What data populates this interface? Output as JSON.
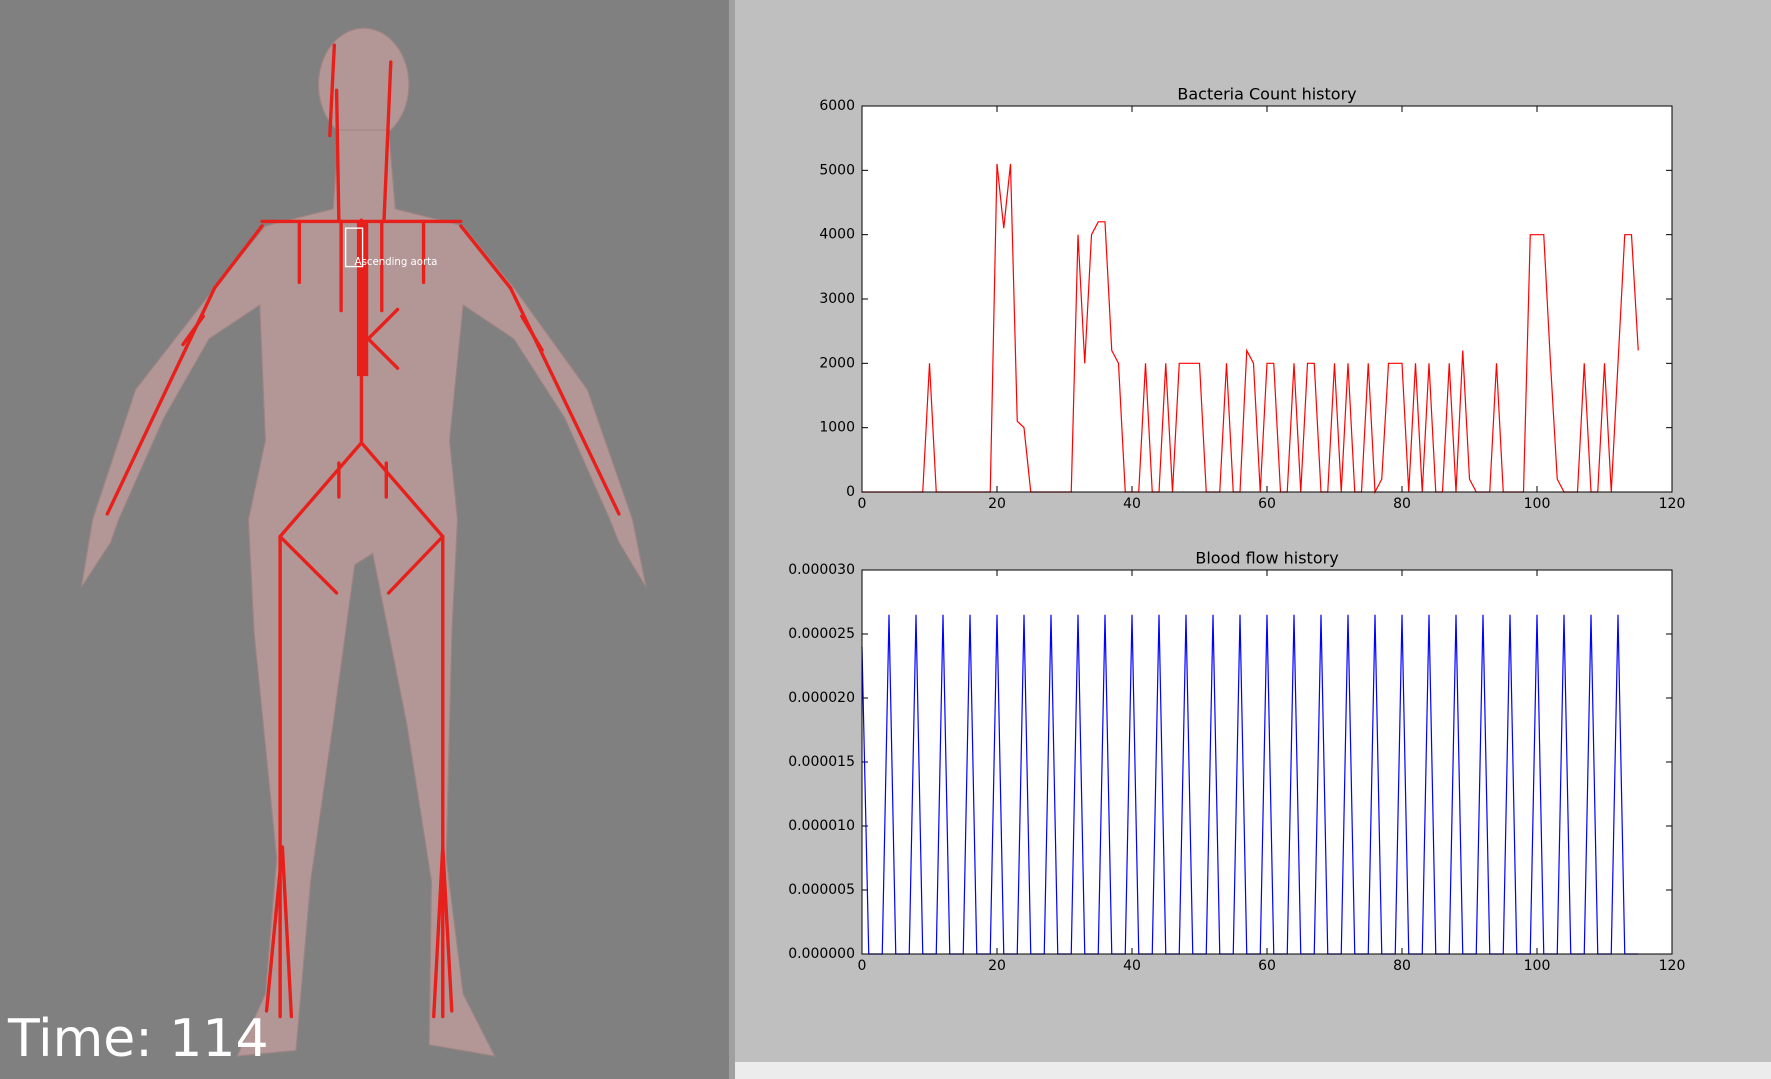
{
  "viewer": {
    "time_label": "Time: 114",
    "vessel_label": "Ascending aorta"
  },
  "chart_data": [
    {
      "type": "line",
      "title": "Bacteria Count history",
      "color": "#ff0000",
      "x": [
        0,
        1,
        2,
        3,
        4,
        5,
        6,
        7,
        8,
        9,
        10,
        11,
        12,
        13,
        14,
        15,
        16,
        17,
        18,
        19,
        20,
        21,
        22,
        23,
        24,
        25,
        26,
        27,
        28,
        29,
        30,
        31,
        32,
        33,
        34,
        35,
        36,
        37,
        38,
        39,
        40,
        41,
        42,
        43,
        44,
        45,
        46,
        47,
        48,
        49,
        50,
        51,
        52,
        53,
        54,
        55,
        56,
        57,
        58,
        59,
        60,
        61,
        62,
        63,
        64,
        65,
        66,
        67,
        68,
        69,
        70,
        71,
        72,
        73,
        74,
        75,
        76,
        77,
        78,
        79,
        80,
        81,
        82,
        83,
        84,
        85,
        86,
        87,
        88,
        89,
        90,
        91,
        92,
        93,
        94,
        95,
        96,
        97,
        98,
        99,
        100,
        101,
        102,
        103,
        104,
        105,
        106,
        107,
        108,
        109,
        110,
        111,
        112,
        113,
        114,
        115
      ],
      "values": [
        0,
        0,
        0,
        0,
        0,
        0,
        0,
        0,
        0,
        0,
        2000,
        0,
        0,
        0,
        0,
        0,
        0,
        0,
        0,
        0,
        5100,
        4100,
        5100,
        1100,
        1000,
        0,
        0,
        0,
        0,
        0,
        0,
        0,
        4000,
        2000,
        4000,
        4200,
        4200,
        2200,
        2000,
        0,
        0,
        0,
        2000,
        0,
        0,
        2000,
        0,
        2000,
        2000,
        2000,
        2000,
        0,
        0,
        0,
        2000,
        0,
        0,
        2200,
        2000,
        0,
        2000,
        2000,
        0,
        0,
        2000,
        0,
        2000,
        2000,
        0,
        0,
        2000,
        0,
        2000,
        0,
        0,
        2000,
        0,
        200,
        2000,
        2000,
        2000,
        0,
        2000,
        0,
        2000,
        0,
        0,
        2000,
        0,
        2200,
        200,
        0,
        0,
        0,
        2000,
        0,
        0,
        0,
        0,
        4000,
        4000,
        4000,
        2000,
        200,
        0,
        0,
        0,
        2000,
        0,
        0,
        2000,
        0,
        2000,
        4000,
        4000,
        2200
      ],
      "xlim": [
        0,
        120
      ],
      "xticks": [
        0,
        20,
        40,
        60,
        80,
        100,
        120
      ],
      "ylim": [
        0,
        6000
      ],
      "yticks": [
        0,
        1000,
        2000,
        3000,
        4000,
        5000,
        6000
      ]
    },
    {
      "type": "line",
      "title": "Blood flow history",
      "color": "#0000ff",
      "x": [
        0,
        1,
        2,
        3,
        4,
        5,
        6,
        7,
        8,
        9,
        10,
        11,
        12,
        13,
        14,
        15,
        16,
        17,
        18,
        19,
        20,
        21,
        22,
        23,
        24,
        25,
        26,
        27,
        28,
        29,
        30,
        31,
        32,
        33,
        34,
        35,
        36,
        37,
        38,
        39,
        40,
        41,
        42,
        43,
        44,
        45,
        46,
        47,
        48,
        49,
        50,
        51,
        52,
        53,
        54,
        55,
        56,
        57,
        58,
        59,
        60,
        61,
        62,
        63,
        64,
        65,
        66,
        67,
        68,
        69,
        70,
        71,
        72,
        73,
        74,
        75,
        76,
        77,
        78,
        79,
        80,
        81,
        82,
        83,
        84,
        85,
        86,
        87,
        88,
        89,
        90,
        91,
        92,
        93,
        94,
        95,
        96,
        97,
        98,
        99,
        100,
        101,
        102,
        103,
        104,
        105,
        106,
        107,
        108,
        109,
        110,
        111,
        112,
        113,
        114,
        115
      ],
      "values": [
        2.4e-05,
        0,
        0,
        0,
        2.65e-05,
        0,
        0,
        0,
        2.65e-05,
        0,
        0,
        0,
        2.65e-05,
        0,
        0,
        0,
        2.65e-05,
        0,
        0,
        0,
        2.65e-05,
        0,
        0,
        0,
        2.65e-05,
        0,
        0,
        0,
        2.65e-05,
        0,
        0,
        0,
        2.65e-05,
        0,
        0,
        0,
        2.65e-05,
        0,
        0,
        0,
        2.65e-05,
        0,
        0,
        0,
        2.65e-05,
        0,
        0,
        0,
        2.65e-05,
        0,
        0,
        0,
        2.65e-05,
        0,
        0,
        0,
        2.65e-05,
        0,
        0,
        0,
        2.65e-05,
        0,
        0,
        0,
        2.65e-05,
        0,
        0,
        0,
        2.65e-05,
        0,
        0,
        0,
        2.65e-05,
        0,
        0,
        0,
        2.65e-05,
        0,
        0,
        0,
        2.65e-05,
        0,
        0,
        0,
        2.65e-05,
        0,
        0,
        0,
        2.65e-05,
        0,
        0,
        0,
        2.65e-05,
        0,
        0,
        0,
        2.65e-05,
        0,
        0,
        0,
        2.65e-05,
        0,
        0,
        0,
        2.65e-05,
        0,
        0,
        0,
        2.65e-05,
        0,
        0,
        0,
        2.65e-05,
        0,
        0,
        0
      ],
      "xlim": [
        0,
        120
      ],
      "xticks": [
        0,
        20,
        40,
        60,
        80,
        100,
        120
      ],
      "ylim": [
        0,
        3e-05
      ],
      "yticks": [
        {
          "value": 0,
          "label": "0.000000"
        },
        {
          "value": 5e-06,
          "label": "0.000005"
        },
        {
          "value": 1e-05,
          "label": "0.000010"
        },
        {
          "value": 1.5e-05,
          "label": "0.000015"
        },
        {
          "value": 2e-05,
          "label": "0.000020"
        },
        {
          "value": 2.5e-05,
          "label": "0.000025"
        },
        {
          "value": 3e-05,
          "label": "0.000030"
        }
      ]
    }
  ]
}
